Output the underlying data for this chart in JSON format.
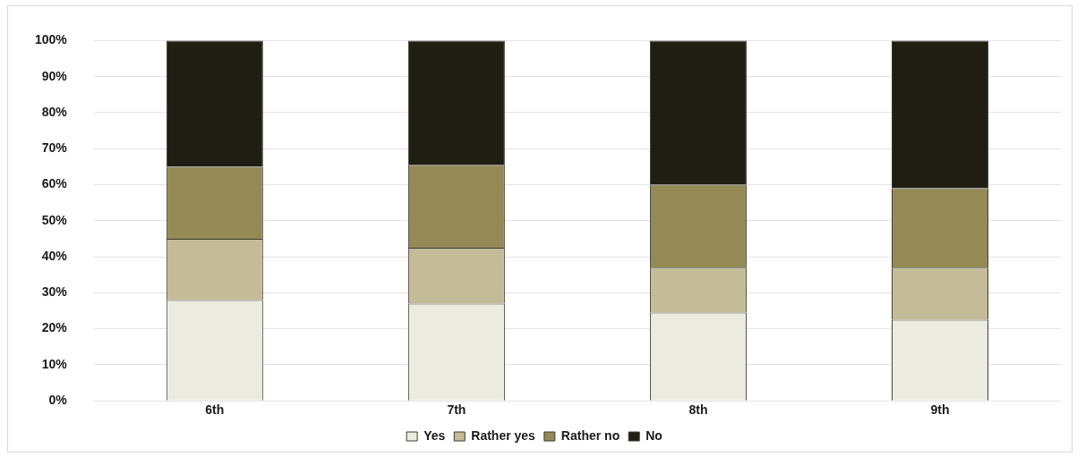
{
  "chart_data": {
    "type": "bar",
    "stacked": true,
    "categories": [
      "6th",
      "7th",
      "8th",
      "9th"
    ],
    "series": [
      {
        "name": "Yes",
        "color": "#ecebe0",
        "values": [
          28,
          27,
          24.5,
          22.5
        ]
      },
      {
        "name": "Rather yes",
        "color": "#c4bc98",
        "values": [
          17,
          15.5,
          12.5,
          14.5
        ]
      },
      {
        "name": "Rather no",
        "color": "#948a55",
        "values": [
          20,
          23,
          23,
          22
        ]
      },
      {
        "name": "No",
        "color": "#201e13",
        "values": [
          35,
          34.5,
          40,
          41
        ]
      }
    ],
    "ylim": [
      0,
      100
    ],
    "yticks": [
      {
        "value": 0,
        "label": "0%"
      },
      {
        "value": 10,
        "label": "10%"
      },
      {
        "value": 20,
        "label": "20%"
      },
      {
        "value": 30,
        "label": "30%"
      },
      {
        "value": 40,
        "label": "40%"
      },
      {
        "value": 50,
        "label": "50%"
      },
      {
        "value": 60,
        "label": "60%"
      },
      {
        "value": 70,
        "label": "70%"
      },
      {
        "value": 80,
        "label": "80%"
      },
      {
        "value": 90,
        "label": "90%"
      },
      {
        "value": 100,
        "label": "100%"
      }
    ],
    "grid": "y",
    "legend": "bottom"
  }
}
